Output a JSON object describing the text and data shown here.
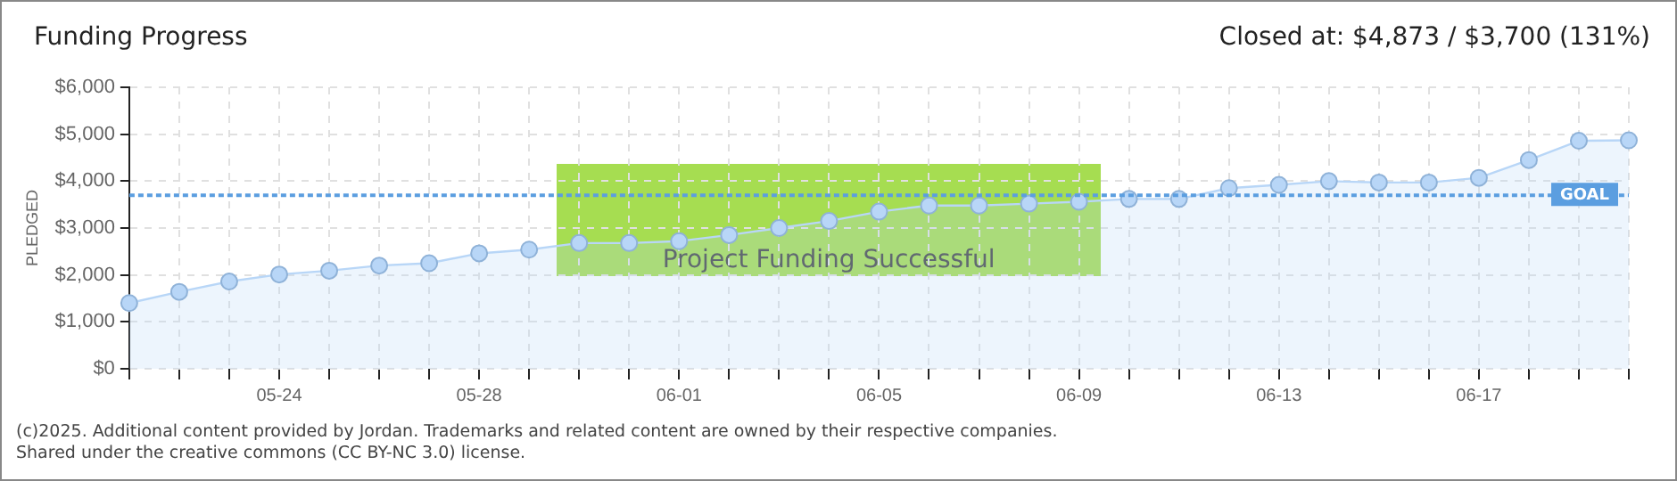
{
  "chart_data": {
    "type": "area",
    "title": "Funding Progress",
    "subtitle": "Closed at: $4,873 / $3,700 (131%)",
    "ylabel": "PLEDGED",
    "categories": [
      null,
      null,
      null,
      "05-24",
      null,
      null,
      null,
      "05-28",
      null,
      null,
      null,
      "06-01",
      null,
      null,
      null,
      "06-05",
      null,
      null,
      null,
      "06-09",
      null,
      null,
      null,
      "06-13",
      null,
      null,
      null,
      "06-17",
      null,
      null,
      null
    ],
    "series": [
      {
        "color": "#b8d6f7",
        "values": [
          1400,
          1640,
          1860,
          2010,
          2090,
          2200,
          2250,
          2460,
          2540,
          2680,
          2680,
          2720,
          2850,
          3000,
          3150,
          3350,
          3480,
          3480,
          3520,
          3560,
          3620,
          3620,
          3850,
          3920,
          4000,
          3970,
          3970,
          4070,
          4450,
          4860,
          4870
        ]
      }
    ],
    "ylim": [
      0,
      6000
    ],
    "yticks": [
      {
        "value": 0,
        "label": "$0"
      },
      {
        "value": 1000,
        "label": "$1,000"
      },
      {
        "value": 2000,
        "label": "$2,000"
      },
      {
        "value": 3000,
        "label": "$3,000"
      },
      {
        "value": 4000,
        "label": "$4,000"
      },
      {
        "value": 5000,
        "label": "$5,000"
      },
      {
        "value": 6000,
        "label": "$6,000"
      }
    ],
    "ref_lines": [
      {
        "axis": "y",
        "value": 3700,
        "label": "GOAL",
        "color": "#5b9ee0",
        "line_style": "dotted"
      }
    ],
    "annotations": [
      "Project Funding Successful",
      "(c)2025. Additional content provided by Jordan. Trademarks and related content are owned by their respective companies.",
      "Shared under the creative commons (CC BY-NC 3.0) license."
    ],
    "grid": true,
    "legend": false,
    "marker": "circle",
    "line_style": "solid"
  }
}
